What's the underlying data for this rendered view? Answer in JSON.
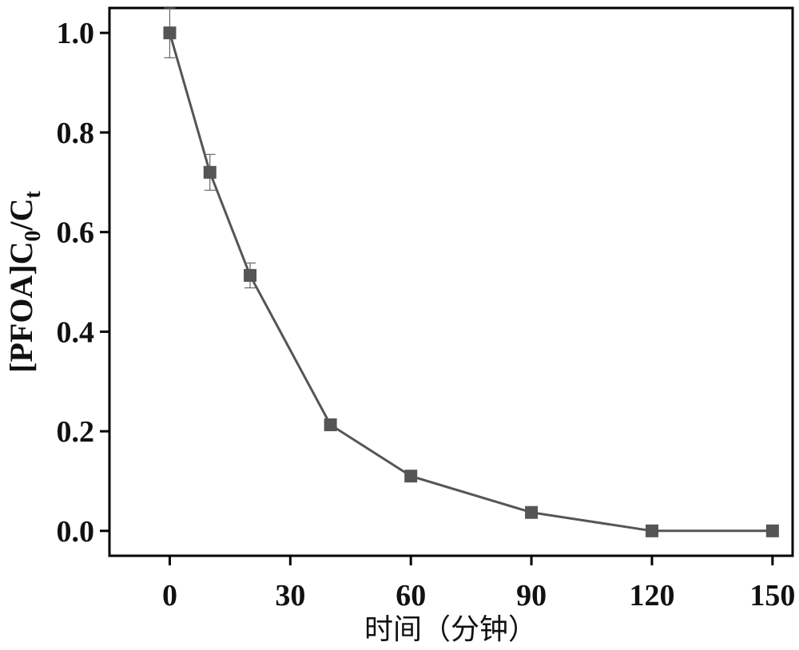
{
  "chart_data": {
    "type": "line",
    "xlabel": "时间（分钟）",
    "ylabel": {
      "main": "[PFOA]C",
      "sub1": "0",
      "slash": "/C",
      "sub2": "t"
    },
    "xlim": [
      -15,
      155
    ],
    "ylim": [
      -0.05,
      1.05
    ],
    "xticks": [
      0,
      30,
      60,
      90,
      120,
      150
    ],
    "yticks": [
      0.0,
      0.2,
      0.4,
      0.6,
      0.8,
      1.0
    ],
    "ytick_labels": [
      "0.0",
      "0.2",
      "0.4",
      "0.6",
      "0.8",
      "1.0"
    ],
    "series": [
      {
        "x": [
          0,
          10,
          20,
          40,
          60,
          90,
          120,
          150
        ],
        "values": [
          1.0,
          0.72,
          0.513,
          0.213,
          0.11,
          0.037,
          0.0,
          0.0
        ],
        "error": [
          0.05,
          0.036,
          0.025,
          0.005,
          0.004,
          0.003,
          0.002,
          0.002
        ],
        "color": "#555555",
        "marker": "square"
      }
    ],
    "grid": false,
    "legend": "none"
  }
}
